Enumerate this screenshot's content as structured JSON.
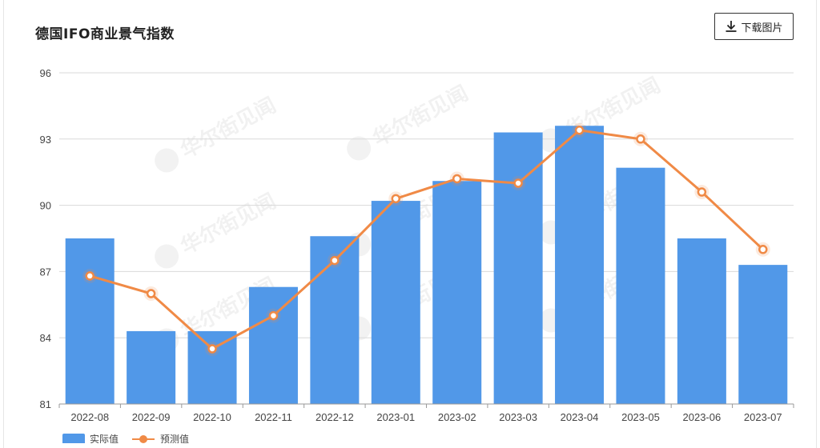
{
  "header": {
    "title": "德国IFO商业景气指数",
    "download_label": "下载图片",
    "download_icon": "download-icon"
  },
  "watermark": "华尔街见闻",
  "colors": {
    "bar": "#5198e8",
    "line": "#f08a46",
    "grid": "#d9d9d9"
  },
  "chart_data": {
    "type": "bar",
    "title": "德国IFO商业景气指数",
    "categories": [
      "2022-08",
      "2022-09",
      "2022-10",
      "2022-11",
      "2022-12",
      "2023-01",
      "2023-02",
      "2023-03",
      "2023-04",
      "2023-05",
      "2023-06",
      "2023-07"
    ],
    "series": [
      {
        "name": "实际值",
        "type": "bar",
        "values": [
          88.5,
          84.3,
          84.3,
          86.3,
          88.6,
          90.2,
          91.1,
          93.3,
          93.6,
          91.7,
          88.5,
          87.3
        ]
      },
      {
        "name": "预测值",
        "type": "line",
        "values": [
          86.8,
          86.0,
          83.5,
          85.0,
          87.5,
          90.3,
          91.2,
          91.0,
          93.4,
          93.0,
          90.6,
          88.0
        ]
      }
    ],
    "yticks": [
      81,
      84,
      87,
      90,
      93,
      96
    ],
    "ylim": [
      81,
      96
    ],
    "grid": true,
    "legend_position": "bottom-left"
  }
}
